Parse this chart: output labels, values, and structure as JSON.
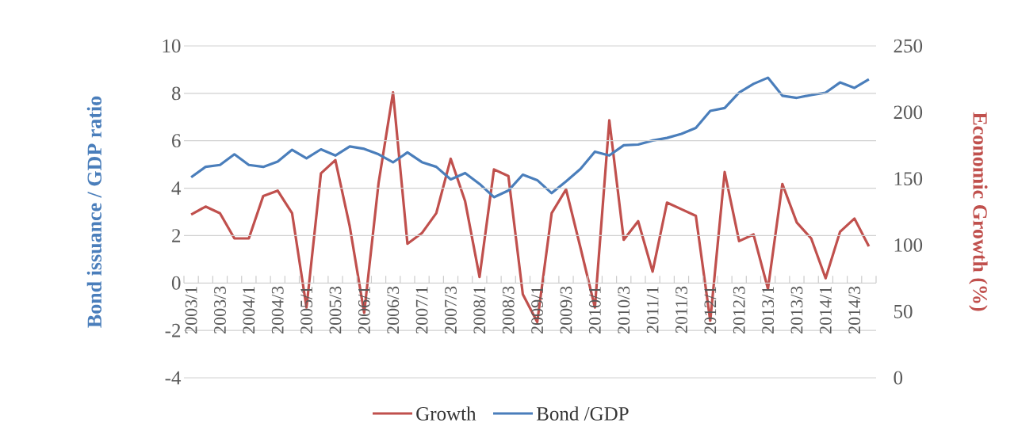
{
  "chart_data": {
    "type": "line",
    "ylabel": "Bond issuance / GDP ratio",
    "y2label": "Economic Growth (%)",
    "categories": [
      "2003/1",
      null,
      "2003/3",
      null,
      "2004/1",
      null,
      "2004/3",
      null,
      "2005/1",
      null,
      "2005/3",
      null,
      "2006/1",
      null,
      "2006/3",
      null,
      "2007/1",
      null,
      "2007/3",
      null,
      "2008/1",
      null,
      "2008/3",
      null,
      "2009/1",
      null,
      "2009/3",
      null,
      "2010/1",
      null,
      "2010/3",
      null,
      "2011/1",
      null,
      "2011/3",
      null,
      "2012/1",
      null,
      "2012/3",
      null,
      "2013/1",
      null,
      "2013/3",
      null,
      "2014/1",
      null,
      "2014/3",
      null
    ],
    "series": [
      {
        "name": "Growth",
        "color": "#c0504d",
        "axis": "y2",
        "values": [
          123,
          129,
          124,
          105,
          105,
          137,
          141,
          124,
          53,
          154,
          164,
          114,
          49,
          147,
          215,
          101,
          109,
          124,
          165,
          133,
          76,
          157,
          152,
          63,
          42,
          124,
          142,
          98,
          53,
          194,
          104,
          118,
          80,
          132,
          127,
          122,
          43,
          155,
          103,
          108,
          67,
          146,
          117,
          105,
          75,
          110,
          120,
          99
        ]
      },
      {
        "name": "Bond /GDP",
        "color": "#4a7ebb",
        "values": [
          4.46,
          4.9,
          4.98,
          5.43,
          4.98,
          4.9,
          5.12,
          5.62,
          5.26,
          5.64,
          5.38,
          5.76,
          5.66,
          5.43,
          5.09,
          5.51,
          5.1,
          4.9,
          4.37,
          4.64,
          4.18,
          3.62,
          3.9,
          4.57,
          4.34,
          3.79,
          4.29,
          4.81,
          5.54,
          5.38,
          5.81,
          5.84,
          6.01,
          6.12,
          6.29,
          6.54,
          7.26,
          7.38,
          8.03,
          8.4,
          8.66,
          7.9,
          7.81,
          7.93,
          8.03,
          8.46,
          8.23,
          8.59
        ]
      }
    ],
    "ylim": [
      -4,
      10
    ],
    "yticks": [
      -4,
      -2,
      0,
      2,
      4,
      6,
      8,
      10
    ],
    "y2lim": [
      0,
      250
    ],
    "y2ticks": [
      0,
      50,
      100,
      150,
      200,
      250
    ],
    "grid": "y",
    "legend": "bottom",
    "line_style": "solid",
    "marker": "none"
  }
}
